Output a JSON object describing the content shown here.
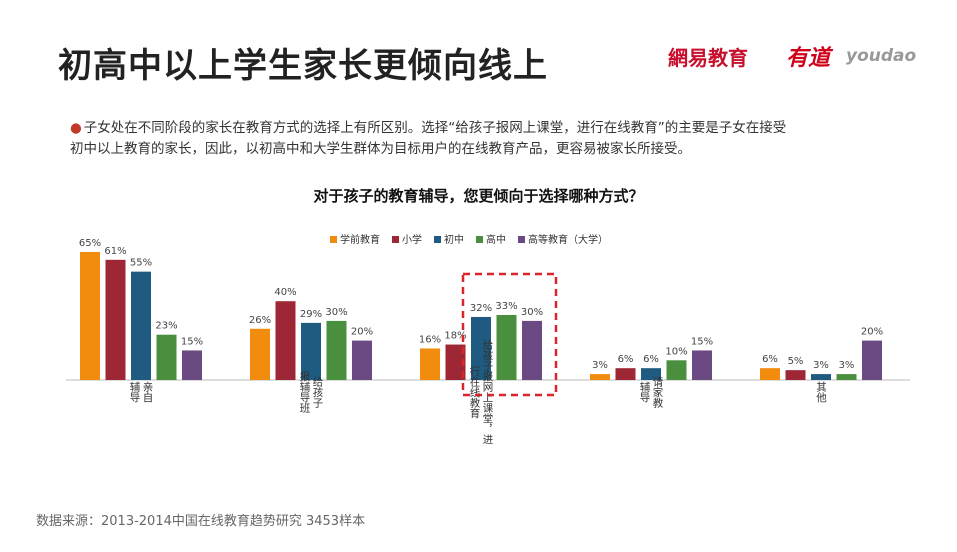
{
  "header": {
    "title": "初高中以上学生家长更倾向线上",
    "logo_netease": "網易教育",
    "logo_youdao_cn": "有道",
    "logo_youdao_en": "youdao"
  },
  "description": {
    "bullet": "●",
    "line1": "子女处在不同阶段的家长在教育方式的选择上有所区别。选择“给孩子报网上课堂，进行在线教育”的主要是子女在接受",
    "line2": "初中以上教育的家长，因此，以初高中和大学生群体为目标用户的在线教育产品，更容易被家长所接受。"
  },
  "source": "数据来源：2013-2014中国在线教育趋势研究  3453样本",
  "colors": {
    "学前教育": "#f28c0f",
    "小学": "#9e2735",
    "初中": "#1f5b80",
    "高中": "#4a8f3e",
    "高等教育": "#6b4a84",
    "highlight": "#d9262c"
  },
  "chart_data": {
    "type": "bar",
    "title": "对于孩子的教育辅导，您更倾向于选择哪种方式？",
    "categories": [
      [
        "亲自",
        "辅导"
      ],
      [
        "给孩子",
        "报辅导班"
      ],
      [
        "给孩子报网上课堂，进",
        "行在线教育"
      ],
      [
        "请家教",
        "辅导"
      ],
      [
        "其他"
      ]
    ],
    "series": [
      {
        "name": "学前教育",
        "values": [
          65,
          26,
          16,
          3,
          6
        ]
      },
      {
        "name": "小学",
        "values": [
          61,
          40,
          18,
          6,
          5
        ]
      },
      {
        "name": "初中",
        "values": [
          55,
          29,
          32,
          6,
          3
        ]
      },
      {
        "name": "高中",
        "values": [
          23,
          30,
          33,
          10,
          3
        ]
      },
      {
        "name": "高等教育（大学）",
        "values": [
          15,
          20,
          30,
          15,
          20
        ]
      }
    ],
    "unit": "%",
    "ylim": [
      0,
      70
    ],
    "grid": false,
    "legend_position": "top-center"
  }
}
